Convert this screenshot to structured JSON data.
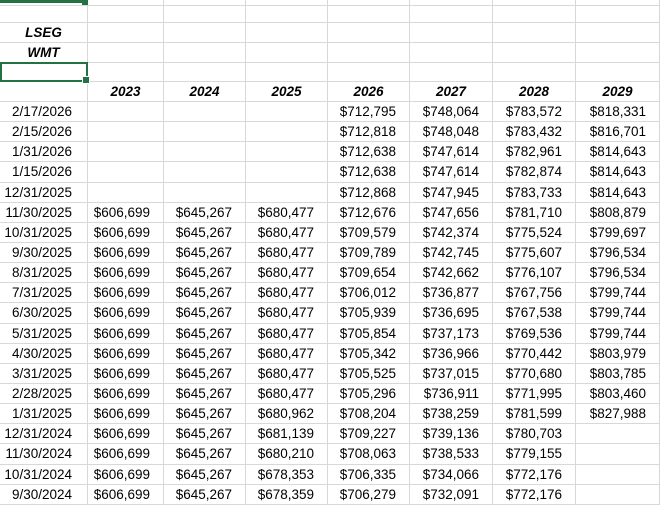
{
  "labels": {
    "primary": "LSEG",
    "secondary": "WMT"
  },
  "years": [
    "2023",
    "2024",
    "2025",
    "2026",
    "2027",
    "2028",
    "2029"
  ],
  "rows": [
    {
      "date": "2/17/2026",
      "values": [
        "",
        "",
        "",
        "$712,795",
        "$748,064",
        "$783,572",
        "$818,331"
      ]
    },
    {
      "date": "2/15/2026",
      "values": [
        "",
        "",
        "",
        "$712,818",
        "$748,048",
        "$783,432",
        "$816,701"
      ]
    },
    {
      "date": "1/31/2026",
      "values": [
        "",
        "",
        "",
        "$712,638",
        "$747,614",
        "$782,961",
        "$814,643"
      ]
    },
    {
      "date": "1/15/2026",
      "values": [
        "",
        "",
        "",
        "$712,638",
        "$747,614",
        "$782,874",
        "$814,643"
      ]
    },
    {
      "date": "12/31/2025",
      "values": [
        "",
        "",
        "",
        "$712,868",
        "$747,945",
        "$783,733",
        "$814,643"
      ]
    },
    {
      "date": "11/30/2025",
      "values": [
        "$606,699",
        "$645,267",
        "$680,477",
        "$712,676",
        "$747,656",
        "$781,710",
        "$808,879"
      ]
    },
    {
      "date": "10/31/2025",
      "values": [
        "$606,699",
        "$645,267",
        "$680,477",
        "$709,579",
        "$742,374",
        "$775,524",
        "$799,697"
      ]
    },
    {
      "date": "9/30/2025",
      "values": [
        "$606,699",
        "$645,267",
        "$680,477",
        "$709,789",
        "$742,745",
        "$775,607",
        "$796,534"
      ]
    },
    {
      "date": "8/31/2025",
      "values": [
        "$606,699",
        "$645,267",
        "$680,477",
        "$709,654",
        "$742,662",
        "$776,107",
        "$796,534"
      ]
    },
    {
      "date": "7/31/2025",
      "values": [
        "$606,699",
        "$645,267",
        "$680,477",
        "$706,012",
        "$736,877",
        "$767,756",
        "$799,744"
      ]
    },
    {
      "date": "6/30/2025",
      "values": [
        "$606,699",
        "$645,267",
        "$680,477",
        "$705,939",
        "$736,695",
        "$767,538",
        "$799,744"
      ]
    },
    {
      "date": "5/31/2025",
      "values": [
        "$606,699",
        "$645,267",
        "$680,477",
        "$705,854",
        "$737,173",
        "$769,536",
        "$799,744"
      ]
    },
    {
      "date": "4/30/2025",
      "values": [
        "$606,699",
        "$645,267",
        "$680,477",
        "$705,342",
        "$736,966",
        "$770,442",
        "$803,979"
      ]
    },
    {
      "date": "3/31/2025",
      "values": [
        "$606,699",
        "$645,267",
        "$680,477",
        "$705,525",
        "$737,015",
        "$770,680",
        "$803,785"
      ]
    },
    {
      "date": "2/28/2025",
      "values": [
        "$606,699",
        "$645,267",
        "$680,477",
        "$705,296",
        "$736,911",
        "$771,995",
        "$803,460"
      ]
    },
    {
      "date": "1/31/2025",
      "values": [
        "$606,699",
        "$645,267",
        "$680,962",
        "$708,204",
        "$738,259",
        "$781,599",
        "$827,988"
      ]
    },
    {
      "date": "12/31/2024",
      "values": [
        "$606,699",
        "$645,267",
        "$681,139",
        "$709,227",
        "$739,136",
        "$780,703",
        ""
      ]
    },
    {
      "date": "11/30/2024",
      "values": [
        "$606,699",
        "$645,267",
        "$680,210",
        "$708,063",
        "$738,533",
        "$779,155",
        ""
      ]
    },
    {
      "date": "10/31/2024",
      "values": [
        "$606,699",
        "$645,267",
        "$678,353",
        "$706,335",
        "$734,066",
        "$772,176",
        ""
      ]
    },
    {
      "date": "9/30/2024",
      "values": [
        "$606,699",
        "$645,267",
        "$678,359",
        "$706,279",
        "$732,091",
        "$772,176",
        ""
      ]
    }
  ],
  "colors": {
    "selection_green": "#217346",
    "gridline": "#d8d8d8",
    "background": "#ffffff",
    "text": "#000000"
  }
}
